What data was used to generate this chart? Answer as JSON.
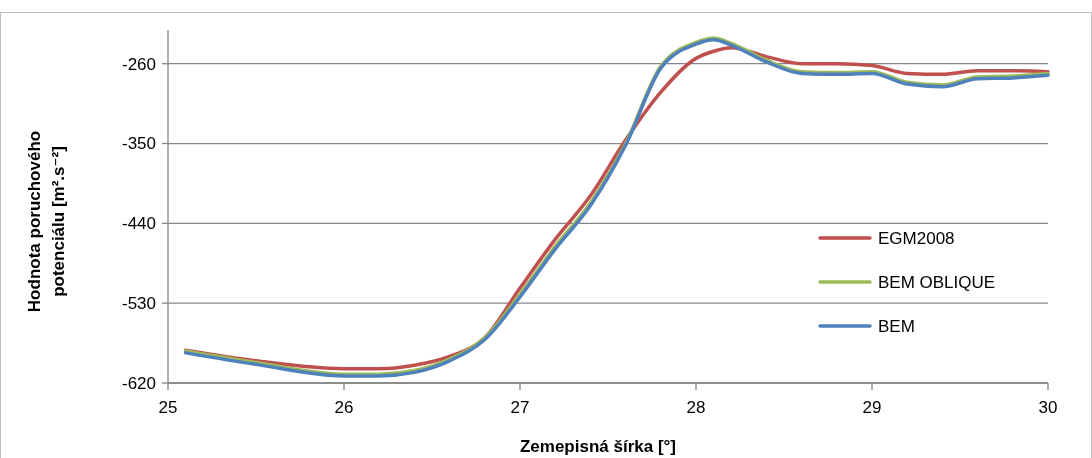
{
  "chart_data": {
    "type": "line",
    "xlabel": "Zemepisná šírka [°]",
    "ylabel": "Hodnota poruchového potenciálu [m².s⁻²]",
    "xlim": [
      25,
      30
    ],
    "xticks": [
      25,
      26,
      27,
      28,
      29,
      30
    ],
    "ylim": [
      -620,
      -222
    ],
    "yticks": [
      -620,
      -530,
      -440,
      -350,
      -260
    ],
    "grid": "y",
    "legend": "right",
    "line_style": "solid",
    "marker": "none",
    "x": [
      25.1,
      25.5,
      26.0,
      26.2,
      26.4,
      26.6,
      26.8,
      27.0,
      27.2,
      27.4,
      27.6,
      27.8,
      28.0,
      28.1,
      28.2,
      28.4,
      28.6,
      28.8,
      29.0,
      29.2,
      29.4,
      29.6,
      29.8,
      30.0
    ],
    "series": [
      {
        "name": "EGM2008",
        "color": "#c0504d",
        "values": [
          -583,
          -595,
          -604,
          -604,
          -600,
          -590,
          -569,
          -513,
          -458,
          -409,
          -346,
          -292,
          -254,
          -246,
          -242,
          -252,
          -260,
          -260,
          -262,
          -271,
          -272,
          -268,
          -268,
          -269
        ]
      },
      {
        "name": "BEM OBLIQUE",
        "color": "#9bbb59",
        "values": [
          -584,
          -597,
          -610,
          -610,
          -606,
          -593,
          -569,
          -520,
          -466,
          -417,
          -350,
          -263,
          -236,
          -231,
          -237,
          -256,
          -269,
          -270,
          -269,
          -281,
          -284,
          -275,
          -274,
          -271
        ]
      },
      {
        "name": "BEM",
        "color": "#4f81bd",
        "values": [
          -586,
          -599,
          -612,
          -612,
          -608,
          -595,
          -571,
          -523,
          -469,
          -420,
          -352,
          -265,
          -238,
          -233,
          -239,
          -258,
          -271,
          -272,
          -271,
          -283,
          -286,
          -277,
          -276,
          -273
        ]
      }
    ]
  }
}
